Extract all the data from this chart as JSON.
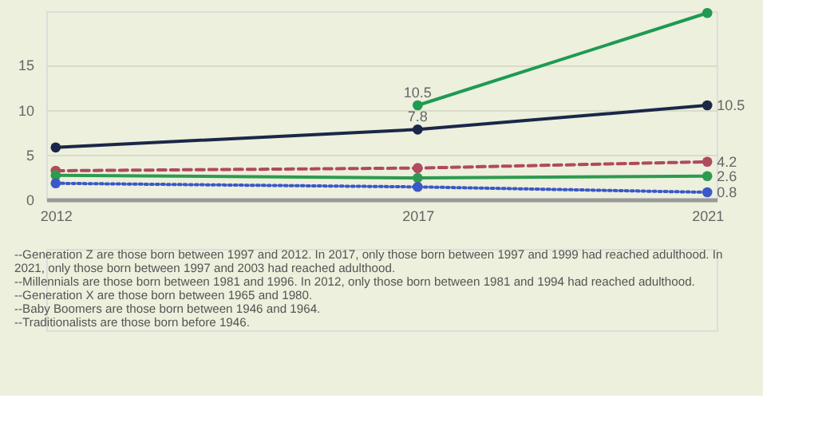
{
  "chart_data": {
    "type": "line",
    "x": [
      2012,
      2017,
      2021
    ],
    "xlim": [
      2011.87,
      2021.13
    ],
    "xticks": [
      2012,
      2017,
      2021
    ],
    "ylim": [
      0,
      21
    ],
    "yticks": [
      0,
      5,
      10,
      15
    ],
    "grid": "y",
    "marker": "circle",
    "series": [
      {
        "color": "#1e9a52",
        "line_style": "solid",
        "values": [
          null,
          10.5,
          20.8
        ],
        "value_labels": [
          null,
          "10.5",
          null
        ]
      },
      {
        "color": "#1b2748",
        "line_style": "solid",
        "values": [
          5.8,
          7.8,
          10.5
        ],
        "value_labels": [
          null,
          "7.8",
          "10.5"
        ]
      },
      {
        "color": "#b04a5c",
        "line_style": "dashed",
        "values": [
          3.2,
          3.5,
          4.2
        ],
        "value_labels": [
          null,
          null,
          "4.2"
        ]
      },
      {
        "color": "#2e9a50",
        "line_style": "solid",
        "values": [
          2.7,
          2.4,
          2.6
        ],
        "value_labels": [
          null,
          null,
          "2.6"
        ]
      },
      {
        "color": "#3a58c8",
        "line_style": "dotted",
        "values": [
          1.8,
          1.4,
          0.8
        ],
        "value_labels": [
          null,
          null,
          "0.8"
        ]
      }
    ],
    "annotations": [
      "--Generation Z are those born between 1997 and 2012. In 2017, only those born between 1997 and 1999 had reached adulthood. In 2021, only those born between 1997 and 2003 had reached adulthood.",
      "--Millennials are those born between 1981 and 1996. In 2012, only those born between 1981 and 1994 had reached adulthood.",
      "--Generation X are those born between 1965 and 1980.",
      "--Baby Boomers are those born between 1946 and 1964.",
      "--Traditionalists are those born before 1946."
    ]
  }
}
